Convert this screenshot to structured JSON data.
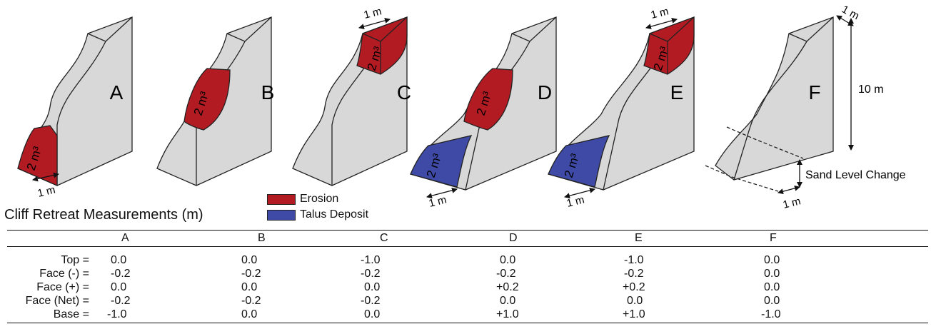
{
  "panels": [
    {
      "letter": "A",
      "erosion_label": "2 m³",
      "width_label": "1 m"
    },
    {
      "letter": "B",
      "erosion_label": "2 m³"
    },
    {
      "letter": "C",
      "erosion_label": "2 m³",
      "width_label": "1 m"
    },
    {
      "letter": "D",
      "erosion_label": "2 m³",
      "talus_label": "2 m³",
      "width_label": "1 m"
    },
    {
      "letter": "E",
      "erosion_label": "2 m³",
      "talus_label": "2 m³",
      "width_labels": [
        "1 m",
        "1 m"
      ]
    },
    {
      "letter": "F",
      "width_labels": [
        "1 m",
        "1 m"
      ],
      "height_label": "10 m",
      "sand_label": "Sand Level Change"
    }
  ],
  "legend": {
    "items": [
      {
        "label": "Erosion",
        "color": "#b21b22"
      },
      {
        "label": "Talus Deposit",
        "color": "#3e4aa6"
      }
    ]
  },
  "colors": {
    "cliff_fill": "#d8d8d8",
    "cliff_stroke": "#222222"
  },
  "table": {
    "title": "Cliff Retreat Measurements (m)",
    "columns": [
      "A",
      "B",
      "C",
      "D",
      "E",
      "F"
    ],
    "rows": [
      {
        "label": "Top =",
        "values": [
          "0.0",
          "0.0",
          "-1.0",
          "0.0",
          "-1.0",
          "0.0"
        ]
      },
      {
        "label": "Face (-) =",
        "values": [
          "-0.2",
          "-0.2",
          "-0.2",
          "-0.2",
          "-0.2",
          "0.0"
        ]
      },
      {
        "label": "Face (+) =",
        "values": [
          "0.0",
          "0.0",
          "0.0",
          "+0.2",
          "+0.2",
          "0.0"
        ]
      },
      {
        "label": "Face (Net) =",
        "values": [
          "-0.2",
          "-0.2",
          "-0.2",
          "0.0",
          "0.0",
          "0.0"
        ]
      },
      {
        "label": "Base =",
        "values": [
          "-1.0",
          "0.0",
          "0.0",
          "+1.0",
          "+1.0",
          "-1.0"
        ]
      }
    ]
  }
}
